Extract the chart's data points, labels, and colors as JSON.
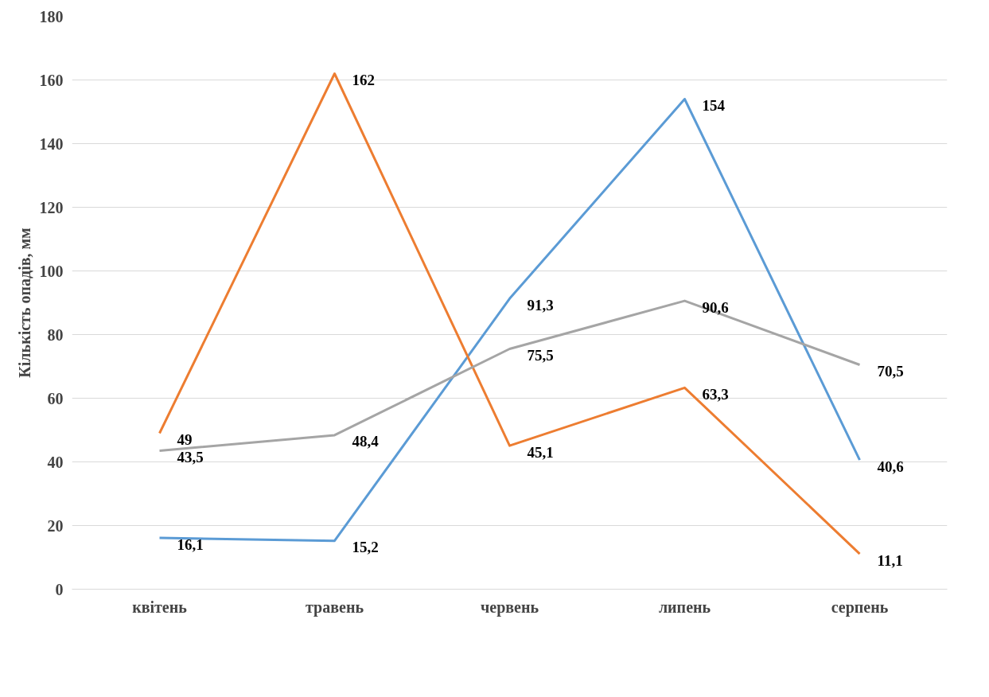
{
  "chart_data": {
    "type": "line",
    "ylabel": "Кількість опадів, мм",
    "categories": [
      "квітень",
      "травень",
      "червень",
      "липень",
      "серпень"
    ],
    "series": [
      {
        "color": "#5b9bd5",
        "values": [
          16.1,
          15.2,
          91.3,
          154,
          40.6
        ],
        "value_labels": [
          "16,1",
          "15,2",
          "91,3",
          "154",
          "40,6"
        ]
      },
      {
        "color": "#ed7d31",
        "values": [
          49,
          162,
          45.1,
          63.3,
          11.1
        ],
        "value_labels": [
          "49",
          "162",
          "45,1",
          "63,3",
          "11,1"
        ]
      },
      {
        "color": "#a5a5a5",
        "values": [
          43.5,
          48.4,
          75.5,
          90.6,
          70.5
        ],
        "value_labels": [
          "43,5",
          "48,4",
          "75,5",
          "90,6",
          "70,5"
        ]
      }
    ],
    "ylim": [
      0,
      180
    ],
    "yticks": [
      0,
      20,
      40,
      60,
      80,
      100,
      120,
      140,
      160,
      180
    ],
    "grid": "y",
    "marker": "none",
    "line_style": "solid"
  }
}
